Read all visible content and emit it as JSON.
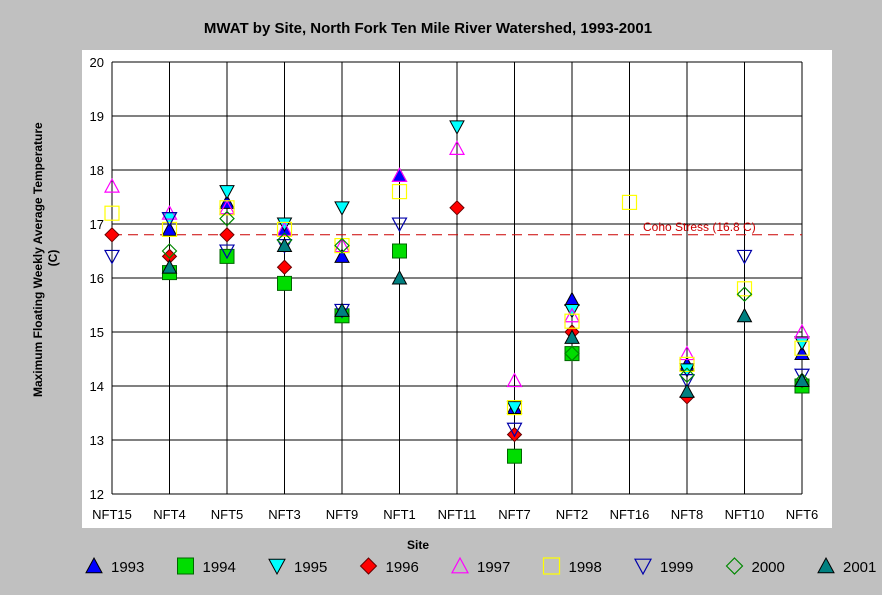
{
  "chart_data": {
    "type": "scatter",
    "title": "MWAT by Site, North Fork Ten Mile River Watershed, 1993-2001",
    "xlabel": "Site",
    "ylabel": "Maximum Floating Weekly Average Temperature (C)",
    "categories": [
      "NFT15",
      "NFT4",
      "NFT5",
      "NFT3",
      "NFT9",
      "NFT1",
      "NFT11",
      "NFT7",
      "NFT2",
      "NFT16",
      "NFT8",
      "NFT10",
      "NFT6"
    ],
    "ylim": [
      12,
      20
    ],
    "yticks": [
      12,
      13,
      14,
      15,
      16,
      17,
      18,
      19,
      20
    ],
    "grid": true,
    "legend_position": "bottom",
    "reference_line": {
      "value": 16.8,
      "label": "Coho Stress (16.8 C)",
      "color": "#cc0000"
    },
    "series": [
      {
        "name": "1993",
        "marker": "triangle-up",
        "fill": "#0000ff",
        "stroke": "#000000",
        "values": [
          null,
          16.9,
          17.4,
          16.9,
          16.4,
          17.9,
          null,
          13.6,
          15.6,
          null,
          14.4,
          null,
          14.6
        ]
      },
      {
        "name": "1994",
        "marker": "square",
        "fill": "#00dd00",
        "stroke": "#006600",
        "values": [
          null,
          16.1,
          16.4,
          15.9,
          15.3,
          16.5,
          null,
          12.7,
          14.6,
          null,
          null,
          null,
          14.0
        ]
      },
      {
        "name": "1995",
        "marker": "triangle-down",
        "fill": "#00ffff",
        "stroke": "#000000",
        "values": [
          null,
          17.1,
          17.6,
          17.0,
          17.3,
          null,
          18.8,
          13.6,
          15.4,
          null,
          14.3,
          null,
          14.8
        ]
      },
      {
        "name": "1996",
        "marker": "diamond",
        "fill": "#ff0000",
        "stroke": "#660000",
        "values": [
          16.8,
          16.4,
          16.8,
          16.2,
          null,
          null,
          17.3,
          13.1,
          15.0,
          null,
          13.8,
          null,
          null
        ]
      },
      {
        "name": "1997",
        "marker": "triangle-up-open",
        "fill": "none",
        "stroke": "#ff00ff",
        "values": [
          17.7,
          17.2,
          17.3,
          16.9,
          16.6,
          17.9,
          18.4,
          14.1,
          15.3,
          null,
          14.6,
          null,
          15.0
        ]
      },
      {
        "name": "1998",
        "marker": "square-open",
        "fill": "none",
        "stroke": "#ffff00",
        "values": [
          17.2,
          16.9,
          17.3,
          16.9,
          16.6,
          17.6,
          null,
          13.6,
          15.2,
          17.4,
          14.4,
          15.8,
          14.7
        ]
      },
      {
        "name": "1999",
        "marker": "triangle-down-open",
        "fill": "none",
        "stroke": "#0000aa",
        "values": [
          16.4,
          17.1,
          16.5,
          16.6,
          15.4,
          17.0,
          null,
          13.2,
          null,
          null,
          14.1,
          16.4,
          14.2
        ]
      },
      {
        "name": "2000",
        "marker": "diamond-open",
        "fill": "none",
        "stroke": "#008800",
        "values": [
          null,
          16.5,
          17.1,
          16.7,
          16.6,
          null,
          null,
          null,
          14.6,
          null,
          14.2,
          15.7,
          14.1
        ]
      },
      {
        "name": "2001",
        "marker": "triangle-up",
        "fill": "#008080",
        "stroke": "#000000",
        "values": [
          null,
          16.2,
          null,
          16.6,
          15.4,
          16.0,
          null,
          null,
          14.9,
          null,
          13.9,
          15.3,
          14.1
        ]
      }
    ]
  }
}
